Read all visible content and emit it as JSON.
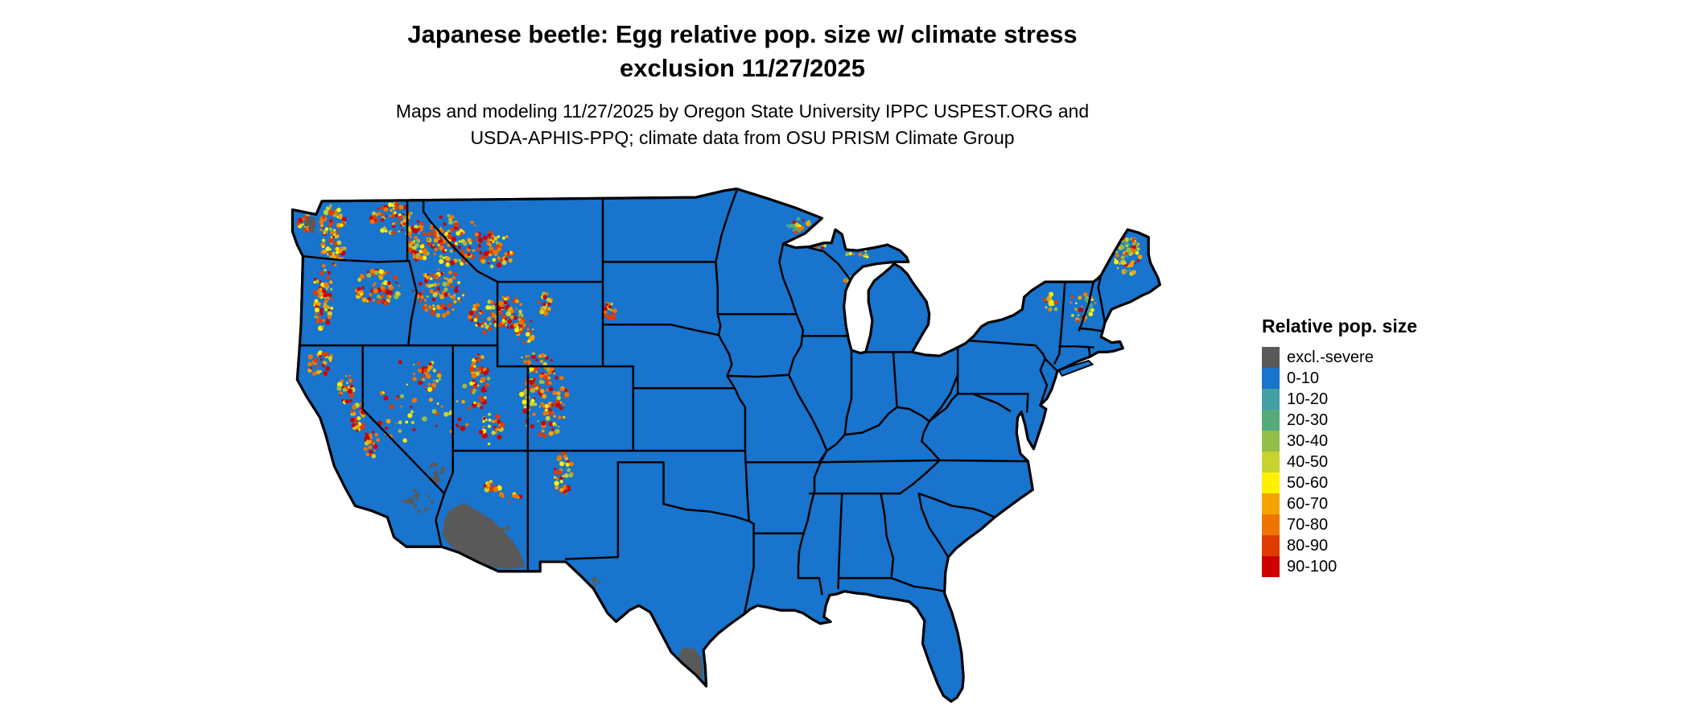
{
  "title": {
    "line1": "Japanese beetle: Egg relative pop. size w/ climate stress",
    "line2": "exclusion 11/27/2025"
  },
  "subtitle": {
    "line1": "Maps and modeling 11/27/2025 by Oregon State University IPPC USPEST.ORG and",
    "line2": "USDA-APHIS-PPQ; climate data from OSU PRISM Climate Group"
  },
  "legend": {
    "title": "Relative pop. size",
    "entries": [
      {
        "label": "excl.-severe",
        "color": "#595959"
      },
      {
        "label": "0-10",
        "color": "#1874CD"
      },
      {
        "label": "10-20",
        "color": "#419FA6"
      },
      {
        "label": "20-30",
        "color": "#55AB79"
      },
      {
        "label": "30-40",
        "color": "#93BE48"
      },
      {
        "label": "40-50",
        "color": "#C8D32F"
      },
      {
        "label": "50-60",
        "color": "#FFF000"
      },
      {
        "label": "60-70",
        "color": "#F5A300"
      },
      {
        "label": "70-80",
        "color": "#EE7600"
      },
      {
        "label": "80-90",
        "color": "#E03C00"
      },
      {
        "label": "90-100",
        "color": "#CC0000"
      }
    ]
  },
  "map": {
    "land_color": "#1874CD",
    "border_color": "#000000",
    "excluded_color": "#595959",
    "water_color": "#FFFFFF"
  }
}
